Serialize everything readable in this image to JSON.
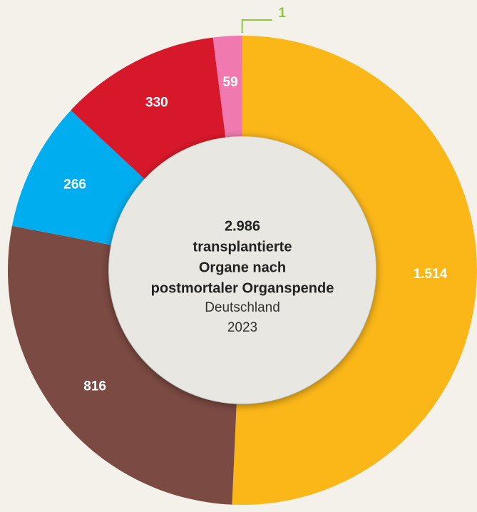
{
  "chart_data": {
    "type": "donut",
    "categories": [
      null,
      null,
      null,
      null,
      null,
      null
    ],
    "values": [
      1514,
      816,
      266,
      330,
      59,
      1
    ],
    "value_labels": [
      "1.514",
      "816",
      "266",
      "330",
      "59",
      "1"
    ],
    "colors": [
      "#fbb718",
      "#7b4a42",
      "#00aeef",
      "#d7182a",
      "#f07ab0",
      "#8dc63f"
    ],
    "center_text": {
      "bold": [
        "2.986",
        "transplantierte",
        "Organe nach",
        "postmortaler Organspende"
      ],
      "regular": [
        "Deutschland",
        "2023"
      ]
    }
  }
}
